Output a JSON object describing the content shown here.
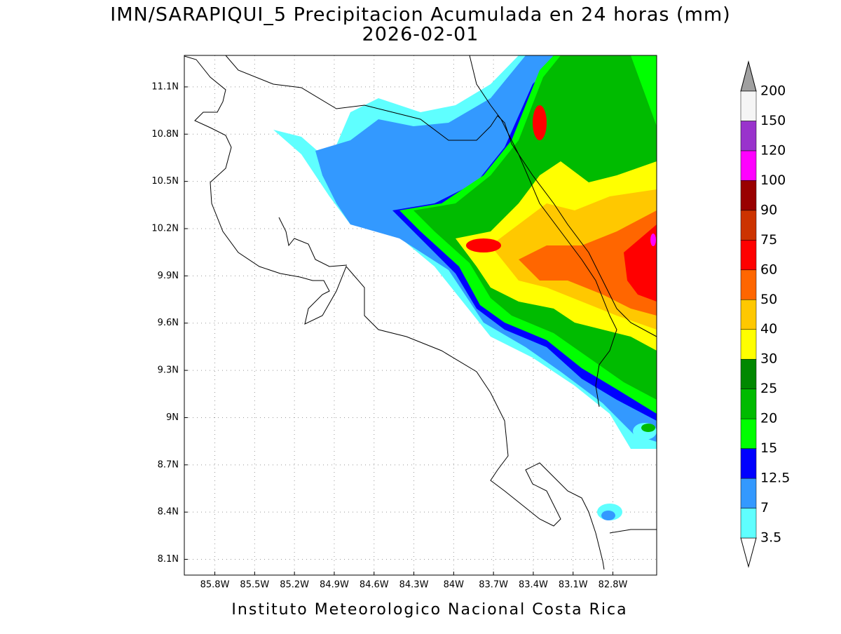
{
  "title": "IMN/SARAPIQUI_5 Precipitacion Acumulada en 24 horas (mm)",
  "subtitle": "2026-02-01",
  "footer": "Instituto Meteorologico Nacional Costa Rica",
  "map": {
    "xlim": [
      -86.03,
      -82.47
    ],
    "ylim": [
      8.0,
      11.3
    ],
    "xticks": [
      {
        "value": -85.8,
        "label": "85.8W"
      },
      {
        "value": -85.5,
        "label": "85.5W"
      },
      {
        "value": -85.2,
        "label": "85.2W"
      },
      {
        "value": -84.9,
        "label": "84.9W"
      },
      {
        "value": -84.6,
        "label": "84.6W"
      },
      {
        "value": -84.3,
        "label": "84.3W"
      },
      {
        "value": -84.0,
        "label": "84W"
      },
      {
        "value": -83.7,
        "label": "83.7W"
      },
      {
        "value": -83.4,
        "label": "83.4W"
      },
      {
        "value": -83.1,
        "label": "83.1W"
      },
      {
        "value": -82.8,
        "label": "82.8W"
      }
    ],
    "yticks": [
      {
        "value": 11.1,
        "label": "11.1N"
      },
      {
        "value": 10.8,
        "label": "10.8N"
      },
      {
        "value": 10.5,
        "label": "10.5N"
      },
      {
        "value": 10.2,
        "label": "10.2N"
      },
      {
        "value": 9.9,
        "label": "9.9N"
      },
      {
        "value": 9.6,
        "label": "9.6N"
      },
      {
        "value": 9.3,
        "label": "9.3N"
      },
      {
        "value": 9.0,
        "label": "9N"
      },
      {
        "value": 8.7,
        "label": "8.7N"
      },
      {
        "value": 8.4,
        "label": "8.4N"
      },
      {
        "value": 8.1,
        "label": "8.1N"
      }
    ],
    "grid": true
  },
  "colorbar": {
    "levels": [
      3.5,
      7,
      12.5,
      15,
      20,
      25,
      30,
      40,
      50,
      60,
      75,
      90,
      100,
      120,
      150,
      200
    ],
    "colors": [
      "#5fffff",
      "#3399ff",
      "#0000ff",
      "#00ff00",
      "#00bb00",
      "#008800",
      "#ffff00",
      "#ffc800",
      "#ff6600",
      "#ff0000",
      "#cc3300",
      "#990000",
      "#ff00ff",
      "#9933cc",
      "#f5f5f5"
    ],
    "under_color": "#ffffff",
    "over_color": "#a0a0a0"
  }
}
